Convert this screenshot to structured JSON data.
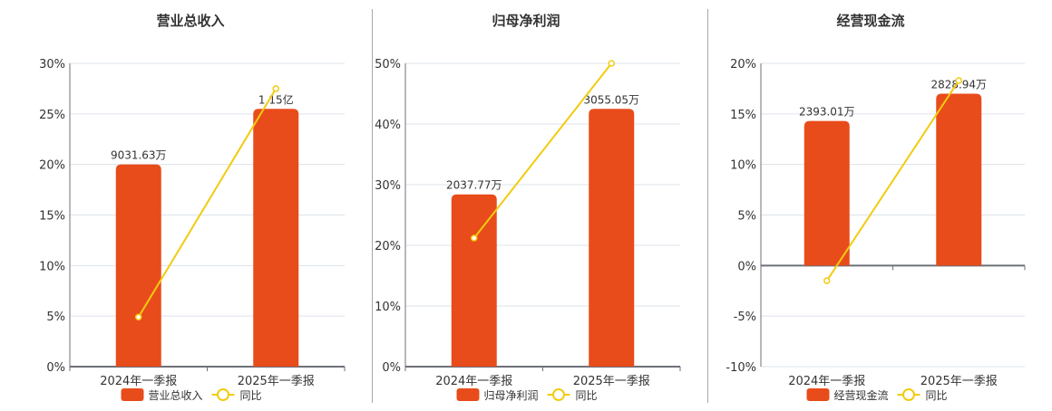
{
  "colors": {
    "bar": "#e84c1b",
    "line": "#f2cb10",
    "grid": "#dde3ea",
    "axis": "#6e7079",
    "text": "#333333",
    "title": "#333333"
  },
  "categories": [
    "2024年一季报",
    "2025年一季报"
  ],
  "chart_data": [
    {
      "type": "bar",
      "title": "营业总收入",
      "categories": [
        "2024年一季报",
        "2025年一季报"
      ],
      "series": [
        {
          "name": "营业总收入",
          "type": "bar",
          "values": [
            20.0,
            25.5
          ],
          "labels": [
            "9031.63万",
            "1.15亿"
          ],
          "raw_values": [
            "9031.63万",
            "1.15亿"
          ]
        },
        {
          "name": "同比",
          "type": "line",
          "values": [
            4.9,
            27.5
          ]
        }
      ],
      "yticks": [
        "30%",
        "25%",
        "20%",
        "15%",
        "10%",
        "5%",
        "0%"
      ],
      "ylim": [
        0,
        30
      ],
      "ystep": 5,
      "xlabel": "",
      "ylabel": "",
      "legend": {
        "position": "bottom",
        "items": [
          "营业总收入",
          "同比"
        ]
      },
      "grid": true
    },
    {
      "type": "bar",
      "title": "归母净利润",
      "categories": [
        "2024年一季报",
        "2025年一季报"
      ],
      "series": [
        {
          "name": "归母净利润",
          "type": "bar",
          "values": [
            28.4,
            42.5
          ],
          "labels": [
            "2037.77万",
            "3055.05万"
          ],
          "raw_values": [
            "2037.77万",
            "3055.05万"
          ]
        },
        {
          "name": "同比",
          "type": "line",
          "values": [
            21.2,
            50.0
          ]
        }
      ],
      "yticks": [
        "50%",
        "40%",
        "30%",
        "20%",
        "10%",
        "0%"
      ],
      "ylim": [
        0,
        50
      ],
      "ystep": 10,
      "xlabel": "",
      "ylabel": "",
      "legend": {
        "position": "bottom",
        "items": [
          "归母净利润",
          "同比"
        ]
      },
      "grid": true
    },
    {
      "type": "bar",
      "title": "经营现金流",
      "categories": [
        "2024年一季报",
        "2025年一季报"
      ],
      "series": [
        {
          "name": "经营现金流",
          "type": "bar",
          "values": [
            14.3,
            17.0
          ],
          "labels": [
            "2393.01万",
            "2828.94万"
          ],
          "raw_values": [
            "2393.01万",
            "2828.94万"
          ]
        },
        {
          "name": "同比",
          "type": "line",
          "values": [
            -1.5,
            18.3
          ]
        }
      ],
      "yticks": [
        "20%",
        "15%",
        "10%",
        "5%",
        "0%",
        "-5%",
        "-10%"
      ],
      "ylim": [
        -10,
        20
      ],
      "ystep": 5,
      "xlabel": "",
      "ylabel": "",
      "legend": {
        "position": "bottom",
        "items": [
          "经营现金流",
          "同比"
        ]
      },
      "grid": true
    }
  ]
}
